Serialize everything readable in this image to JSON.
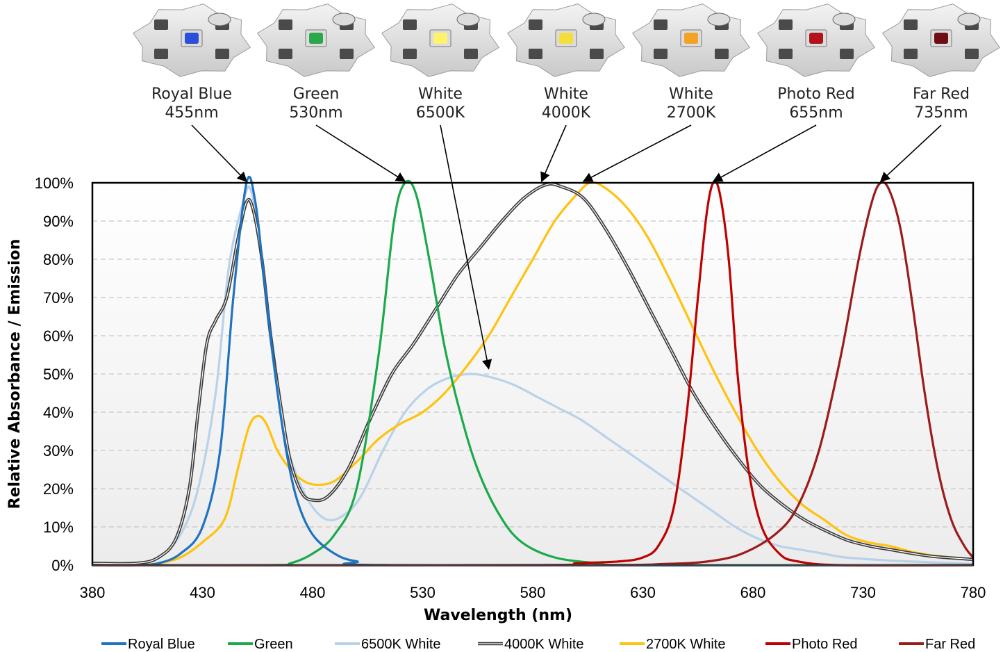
{
  "chart_data": {
    "type": "line",
    "title": "",
    "xlabel": "Wavelength (nm)",
    "ylabel": "Relative Absorbance / Emission",
    "xlim": [
      380,
      780
    ],
    "ylim": [
      0,
      100
    ],
    "x_ticks": [
      "380",
      "430",
      "480",
      "530",
      "580",
      "630",
      "680",
      "730",
      "780"
    ],
    "y_ticks": [
      "0%",
      "10%",
      "20%",
      "30%",
      "40%",
      "50%",
      "60%",
      "70%",
      "80%",
      "90%",
      "100%"
    ],
    "grid": "horizontal dashed",
    "legend_position": "bottom",
    "series": [
      {
        "name": "Royal Blue",
        "color": "#1f73c0",
        "points": [
          [
            380,
            0
          ],
          [
            400,
            0
          ],
          [
            410,
            0.5
          ],
          [
            420,
            3
          ],
          [
            430,
            10
          ],
          [
            438,
            30
          ],
          [
            444,
            70
          ],
          [
            450,
            100
          ],
          [
            454,
            95
          ],
          [
            458,
            75
          ],
          [
            463,
            50
          ],
          [
            468,
            30
          ],
          [
            473,
            17
          ],
          [
            480,
            8
          ],
          [
            490,
            3
          ],
          [
            500,
            1
          ],
          [
            520,
            0
          ],
          [
            780,
            0
          ]
        ]
      },
      {
        "name": "Green",
        "color": "#1aaa4a",
        "points": [
          [
            380,
            0
          ],
          [
            460,
            0
          ],
          [
            470,
            0.5
          ],
          [
            480,
            3
          ],
          [
            490,
            8
          ],
          [
            500,
            20
          ],
          [
            510,
            55
          ],
          [
            517,
            90
          ],
          [
            522,
            100
          ],
          [
            527,
            97
          ],
          [
            533,
            80
          ],
          [
            540,
            57
          ],
          [
            547,
            40
          ],
          [
            555,
            25
          ],
          [
            565,
            13
          ],
          [
            575,
            6
          ],
          [
            590,
            2
          ],
          [
            610,
            0.5
          ],
          [
            630,
            0
          ],
          [
            780,
            0
          ]
        ]
      },
      {
        "name": "6500K White",
        "color": "#b8d2ea",
        "points": [
          [
            380,
            0.5
          ],
          [
            400,
            0.5
          ],
          [
            410,
            2
          ],
          [
            420,
            8
          ],
          [
            428,
            20
          ],
          [
            436,
            45
          ],
          [
            442,
            78
          ],
          [
            449,
            96
          ],
          [
            452,
            98
          ],
          [
            456,
            85
          ],
          [
            460,
            63
          ],
          [
            465,
            42
          ],
          [
            470,
            28
          ],
          [
            478,
            17
          ],
          [
            486,
            12
          ],
          [
            494,
            13
          ],
          [
            502,
            18
          ],
          [
            512,
            30
          ],
          [
            522,
            40
          ],
          [
            532,
            46
          ],
          [
            542,
            49
          ],
          [
            552,
            50
          ],
          [
            562,
            49
          ],
          [
            572,
            47
          ],
          [
            582,
            44
          ],
          [
            592,
            41
          ],
          [
            602,
            38
          ],
          [
            612,
            34
          ],
          [
            622,
            30
          ],
          [
            632,
            26
          ],
          [
            642,
            22
          ],
          [
            652,
            18
          ],
          [
            662,
            14
          ],
          [
            672,
            10
          ],
          [
            682,
            7
          ],
          [
            692,
            5
          ],
          [
            702,
            4
          ],
          [
            712,
            3
          ],
          [
            722,
            2
          ],
          [
            742,
            1.2
          ],
          [
            762,
            0.7
          ],
          [
            780,
            0.3
          ]
        ]
      },
      {
        "name": "4000K White",
        "color": "#3a3a3a",
        "points": [
          [
            380,
            0.5
          ],
          [
            400,
            0.5
          ],
          [
            410,
            2
          ],
          [
            418,
            7
          ],
          [
            424,
            20
          ],
          [
            428,
            40
          ],
          [
            432,
            58
          ],
          [
            436,
            64
          ],
          [
            441,
            70
          ],
          [
            446,
            85
          ],
          [
            450,
            95
          ],
          [
            453,
            93
          ],
          [
            457,
            80
          ],
          [
            461,
            60
          ],
          [
            466,
            40
          ],
          [
            470,
            27
          ],
          [
            475,
            19
          ],
          [
            480,
            17
          ],
          [
            487,
            18
          ],
          [
            496,
            25
          ],
          [
            506,
            38
          ],
          [
            516,
            50
          ],
          [
            526,
            58
          ],
          [
            536,
            67
          ],
          [
            546,
            76
          ],
          [
            556,
            83
          ],
          [
            566,
            90
          ],
          [
            576,
            96
          ],
          [
            586,
            99.5
          ],
          [
            593,
            99
          ],
          [
            603,
            96
          ],
          [
            613,
            88
          ],
          [
            623,
            78
          ],
          [
            633,
            67
          ],
          [
            643,
            56
          ],
          [
            653,
            45
          ],
          [
            663,
            36
          ],
          [
            673,
            28
          ],
          [
            683,
            21
          ],
          [
            693,
            16
          ],
          [
            703,
            12
          ],
          [
            713,
            9
          ],
          [
            723,
            6.5
          ],
          [
            733,
            5
          ],
          [
            743,
            4
          ],
          [
            753,
            3
          ],
          [
            763,
            2.2
          ],
          [
            780,
            1.5
          ]
        ]
      },
      {
        "name": "2700K White",
        "color": "#ffc20e",
        "points": [
          [
            380,
            0
          ],
          [
            400,
            0
          ],
          [
            410,
            0.5
          ],
          [
            420,
            2
          ],
          [
            430,
            6
          ],
          [
            440,
            12
          ],
          [
            446,
            25
          ],
          [
            451,
            36
          ],
          [
            455,
            39
          ],
          [
            459,
            37
          ],
          [
            464,
            30
          ],
          [
            470,
            25
          ],
          [
            476,
            22
          ],
          [
            482,
            21
          ],
          [
            490,
            22
          ],
          [
            500,
            27
          ],
          [
            510,
            33
          ],
          [
            520,
            37
          ],
          [
            530,
            40
          ],
          [
            540,
            45
          ],
          [
            550,
            52
          ],
          [
            560,
            60
          ],
          [
            570,
            70
          ],
          [
            580,
            80
          ],
          [
            590,
            90
          ],
          [
            600,
            97
          ],
          [
            606,
            100
          ],
          [
            612,
            99
          ],
          [
            622,
            94
          ],
          [
            632,
            86
          ],
          [
            642,
            75
          ],
          [
            652,
            63
          ],
          [
            662,
            51
          ],
          [
            672,
            40
          ],
          [
            682,
            30
          ],
          [
            692,
            22
          ],
          [
            702,
            16
          ],
          [
            712,
            12
          ],
          [
            722,
            8
          ],
          [
            732,
            6
          ],
          [
            742,
            5
          ],
          [
            752,
            3.5
          ],
          [
            762,
            2.5
          ],
          [
            780,
            1.5
          ]
        ]
      },
      {
        "name": "Photo Red",
        "color": "#c00000",
        "points": [
          [
            380,
            0
          ],
          [
            580,
            0
          ],
          [
            600,
            0.5
          ],
          [
            620,
            1
          ],
          [
            630,
            2
          ],
          [
            637,
            5
          ],
          [
            644,
            15
          ],
          [
            650,
            40
          ],
          [
            655,
            70
          ],
          [
            659,
            92
          ],
          [
            662,
            100
          ],
          [
            665,
            97
          ],
          [
            669,
            80
          ],
          [
            673,
            50
          ],
          [
            678,
            25
          ],
          [
            684,
            10
          ],
          [
            692,
            3
          ],
          [
            700,
            1
          ],
          [
            720,
            0
          ],
          [
            780,
            0
          ]
        ]
      },
      {
        "name": "Far Red",
        "color": "#9b1c1c",
        "points": [
          [
            380,
            0
          ],
          [
            600,
            0
          ],
          [
            640,
            0.3
          ],
          [
            660,
            1
          ],
          [
            675,
            3
          ],
          [
            690,
            8
          ],
          [
            700,
            15
          ],
          [
            710,
            30
          ],
          [
            720,
            55
          ],
          [
            728,
            80
          ],
          [
            734,
            95
          ],
          [
            738,
            100
          ],
          [
            742,
            98
          ],
          [
            747,
            88
          ],
          [
            752,
            70
          ],
          [
            758,
            45
          ],
          [
            764,
            25
          ],
          [
            770,
            12
          ],
          [
            776,
            5
          ],
          [
            780,
            2
          ]
        ]
      }
    ],
    "led_labels": [
      {
        "name": "Royal Blue",
        "spec": "455nm",
        "points_to": [
          450,
          100
        ],
        "color": "#2b4fd9"
      },
      {
        "name": "Green",
        "spec": "530nm",
        "points_to": [
          522,
          100
        ],
        "color": "#2aa84a"
      },
      {
        "name": "White",
        "spec": "6500K",
        "points_to": [
          560,
          51
        ],
        "color": "#fff36b"
      },
      {
        "name": "White",
        "spec": "4000K",
        "points_to": [
          584,
          100
        ],
        "color": "#f6de3a"
      },
      {
        "name": "White",
        "spec": "2700K",
        "points_to": [
          603,
          100
        ],
        "color": "#f3a226"
      },
      {
        "name": "Photo Red",
        "spec": "655nm",
        "points_to": [
          662,
          100
        ],
        "color": "#b3121d"
      },
      {
        "name": "Far Red",
        "spec": "735nm",
        "points_to": [
          738,
          100
        ],
        "color": "#6e0d14"
      }
    ]
  }
}
